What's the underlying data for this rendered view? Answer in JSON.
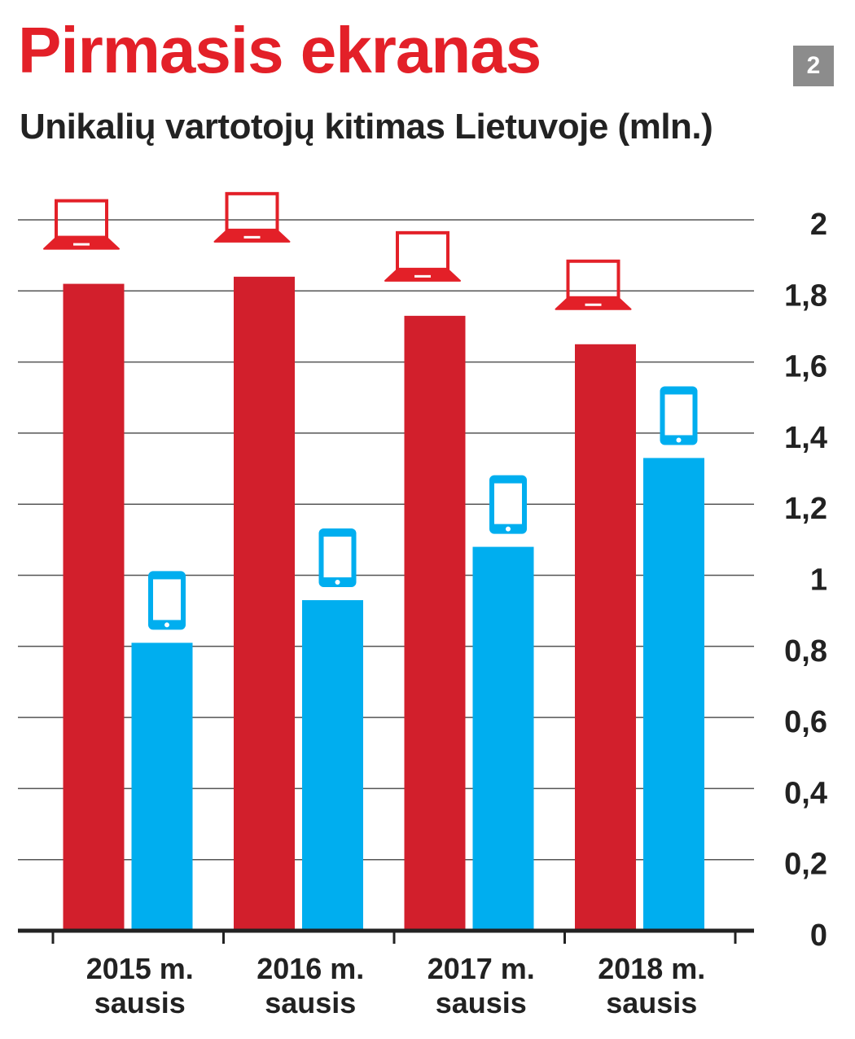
{
  "title": "Pirmasis ekranas",
  "subtitle": "Unikalių vartotojų kitimas Lietuvoje (mln.)",
  "badge": "2",
  "chart_data": {
    "type": "bar",
    "categories": [
      [
        "2015 m.",
        "sausis"
      ],
      [
        "2016 m.",
        "sausis"
      ],
      [
        "2017 m.",
        "sausis"
      ],
      [
        "2018 m.",
        "sausis"
      ]
    ],
    "series": [
      {
        "icon": "laptop-icon",
        "color": "#d21f2c",
        "values": [
          1.82,
          1.84,
          1.73,
          1.65
        ]
      },
      {
        "icon": "tablet-icon",
        "color": "#00aeef",
        "values": [
          0.81,
          0.93,
          1.08,
          1.33
        ]
      }
    ],
    "yticks": [
      "0",
      "0,2",
      "0,4",
      "0,6",
      "0,8",
      "1",
      "1,2",
      "1,4",
      "1,6",
      "1,8",
      "2"
    ],
    "ylim": [
      0,
      2
    ],
    "grid": true,
    "y_axis_side": "right"
  }
}
